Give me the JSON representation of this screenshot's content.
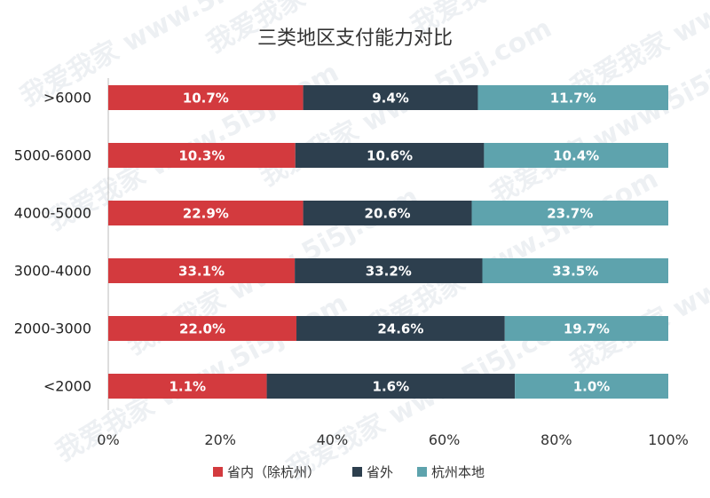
{
  "watermark_text": "我爱我家 www.5i5j.com",
  "chart_data": {
    "type": "bar",
    "orientation": "horizontal",
    "stacked": true,
    "percent": true,
    "title": "三类地区支付能力对比",
    "categories": [
      ">6000",
      "5000-6000",
      "4000-5000",
      "3000-4000",
      "2000-3000",
      "<2000"
    ],
    "series": [
      {
        "name": "省内（除杭州）",
        "color": "#d33a3e",
        "values": [
          34.8,
          33.4,
          34.8,
          33.3,
          33.6,
          28.3
        ],
        "labels": [
          "10.7%",
          "10.3%",
          "22.9%",
          "33.1%",
          "22.0%",
          "1.1%"
        ]
      },
      {
        "name": "省外",
        "color": "#2d3f4e",
        "values": [
          31.2,
          33.7,
          30.1,
          33.5,
          37.2,
          44.3
        ],
        "labels": [
          "9.4%",
          "10.6%",
          "20.6%",
          "33.2%",
          "24.6%",
          "1.6%"
        ]
      },
      {
        "name": "杭州本地",
        "color": "#5ea3ad",
        "values": [
          34.0,
          32.9,
          35.1,
          33.2,
          29.2,
          27.4
        ],
        "labels": [
          "11.7%",
          "10.4%",
          "23.7%",
          "33.5%",
          "19.7%",
          "1.0%"
        ]
      }
    ],
    "xlim": [
      0,
      100
    ],
    "xticks": [
      "0%",
      "20%",
      "40%",
      "60%",
      "80%",
      "100%"
    ],
    "grid": false,
    "legend_position": "bottom"
  }
}
